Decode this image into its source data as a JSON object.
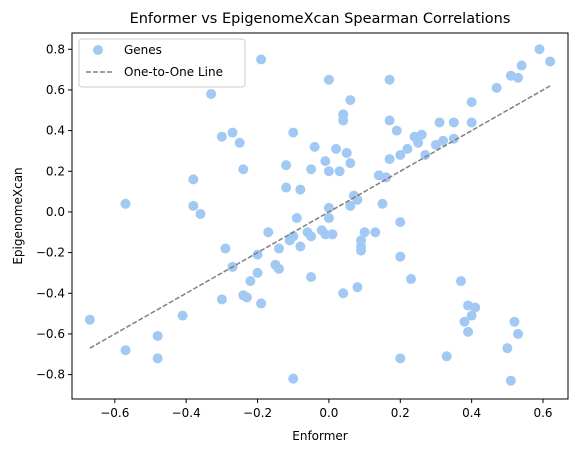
{
  "chart_data": {
    "type": "scatter",
    "title": "Enformer vs EpigenomeXcan Spearman Correlations",
    "xlabel": "Enformer",
    "ylabel": "EpigenomeXcan",
    "xlim": [
      -0.72,
      0.67
    ],
    "ylim": [
      -0.92,
      0.88
    ],
    "xticks": [
      -0.6,
      -0.4,
      -0.2,
      0.0,
      0.2,
      0.4,
      0.6
    ],
    "xtick_labels": [
      "−0.6",
      "−0.4",
      "−0.2",
      "0.0",
      "0.2",
      "0.4",
      "0.6"
    ],
    "yticks": [
      -0.8,
      -0.6,
      -0.4,
      -0.2,
      0.0,
      0.2,
      0.4,
      0.6,
      0.8
    ],
    "ytick_labels": [
      "−0.8",
      "−0.6",
      "−0.4",
      "−0.2",
      "0.0",
      "0.2",
      "0.4",
      "0.6",
      "0.8"
    ],
    "grid": false,
    "legend_position": "top-left",
    "series": [
      {
        "name": "Genes",
        "kind": "scatter",
        "color": "#a1c9f4",
        "points": [
          [
            -0.67,
            -0.53
          ],
          [
            -0.57,
            0.04
          ],
          [
            -0.57,
            -0.68
          ],
          [
            -0.48,
            -0.61
          ],
          [
            -0.48,
            -0.72
          ],
          [
            -0.41,
            -0.51
          ],
          [
            -0.38,
            0.16
          ],
          [
            -0.38,
            0.03
          ],
          [
            -0.36,
            -0.01
          ],
          [
            -0.33,
            0.58
          ],
          [
            -0.3,
            -0.43
          ],
          [
            -0.3,
            0.37
          ],
          [
            -0.29,
            -0.18
          ],
          [
            -0.27,
            0.39
          ],
          [
            -0.27,
            -0.27
          ],
          [
            -0.25,
            0.34
          ],
          [
            -0.24,
            0.21
          ],
          [
            -0.24,
            -0.41
          ],
          [
            -0.23,
            -0.42
          ],
          [
            -0.22,
            -0.34
          ],
          [
            -0.2,
            -0.21
          ],
          [
            -0.2,
            -0.3
          ],
          [
            -0.19,
            0.75
          ],
          [
            -0.19,
            -0.45
          ],
          [
            -0.17,
            -0.1
          ],
          [
            -0.15,
            -0.26
          ],
          [
            -0.14,
            -0.28
          ],
          [
            -0.14,
            -0.18
          ],
          [
            -0.12,
            0.12
          ],
          [
            -0.12,
            0.23
          ],
          [
            -0.11,
            -0.14
          ],
          [
            -0.1,
            -0.12
          ],
          [
            -0.1,
            0.39
          ],
          [
            -0.1,
            -0.82
          ],
          [
            -0.09,
            -0.03
          ],
          [
            -0.08,
            0.11
          ],
          [
            -0.08,
            -0.17
          ],
          [
            -0.06,
            -0.1
          ],
          [
            -0.05,
            -0.12
          ],
          [
            -0.05,
            0.21
          ],
          [
            -0.05,
            -0.32
          ],
          [
            -0.04,
            0.32
          ],
          [
            -0.02,
            -0.09
          ],
          [
            -0.01,
            0.25
          ],
          [
            -0.01,
            -0.11
          ],
          [
            0.0,
            0.02
          ],
          [
            0.0,
            0.2
          ],
          [
            0.0,
            0.65
          ],
          [
            0.0,
            -0.03
          ],
          [
            0.01,
            -0.11
          ],
          [
            0.02,
            0.31
          ],
          [
            0.03,
            0.2
          ],
          [
            0.04,
            0.45
          ],
          [
            0.04,
            0.48
          ],
          [
            0.04,
            -0.4
          ],
          [
            0.05,
            0.29
          ],
          [
            0.06,
            0.03
          ],
          [
            0.06,
            0.55
          ],
          [
            0.06,
            0.24
          ],
          [
            0.07,
            0.08
          ],
          [
            0.08,
            -0.37
          ],
          [
            0.08,
            0.06
          ],
          [
            0.09,
            -0.14
          ],
          [
            0.09,
            -0.19
          ],
          [
            0.09,
            -0.17
          ],
          [
            0.1,
            -0.1
          ],
          [
            0.13,
            -0.1
          ],
          [
            0.14,
            0.18
          ],
          [
            0.15,
            0.04
          ],
          [
            0.16,
            0.17
          ],
          [
            0.17,
            0.65
          ],
          [
            0.17,
            0.45
          ],
          [
            0.17,
            0.26
          ],
          [
            0.19,
            0.4
          ],
          [
            0.2,
            0.28
          ],
          [
            0.2,
            -0.05
          ],
          [
            0.2,
            -0.22
          ],
          [
            0.2,
            -0.72
          ],
          [
            0.22,
            0.31
          ],
          [
            0.23,
            -0.33
          ],
          [
            0.24,
            0.37
          ],
          [
            0.25,
            0.34
          ],
          [
            0.26,
            0.38
          ],
          [
            0.27,
            0.28
          ],
          [
            0.3,
            0.33
          ],
          [
            0.31,
            0.44
          ],
          [
            0.32,
            0.35
          ],
          [
            0.33,
            -0.71
          ],
          [
            0.35,
            0.44
          ],
          [
            0.35,
            0.36
          ],
          [
            0.37,
            -0.34
          ],
          [
            0.38,
            -0.54
          ],
          [
            0.39,
            -0.46
          ],
          [
            0.39,
            -0.59
          ],
          [
            0.4,
            0.44
          ],
          [
            0.4,
            0.54
          ],
          [
            0.4,
            -0.51
          ],
          [
            0.41,
            -0.47
          ],
          [
            0.47,
            0.61
          ],
          [
            0.5,
            -0.67
          ],
          [
            0.51,
            -0.83
          ],
          [
            0.51,
            0.67
          ],
          [
            0.52,
            -0.54
          ],
          [
            0.53,
            0.66
          ],
          [
            0.53,
            -0.6
          ],
          [
            0.54,
            0.72
          ],
          [
            0.59,
            0.8
          ],
          [
            0.62,
            0.74
          ]
        ]
      },
      {
        "name": "One-to-One Line",
        "kind": "line",
        "color": "#808080",
        "dash": true,
        "x": [
          -0.67,
          0.62
        ],
        "y": [
          -0.67,
          0.62
        ]
      }
    ]
  }
}
